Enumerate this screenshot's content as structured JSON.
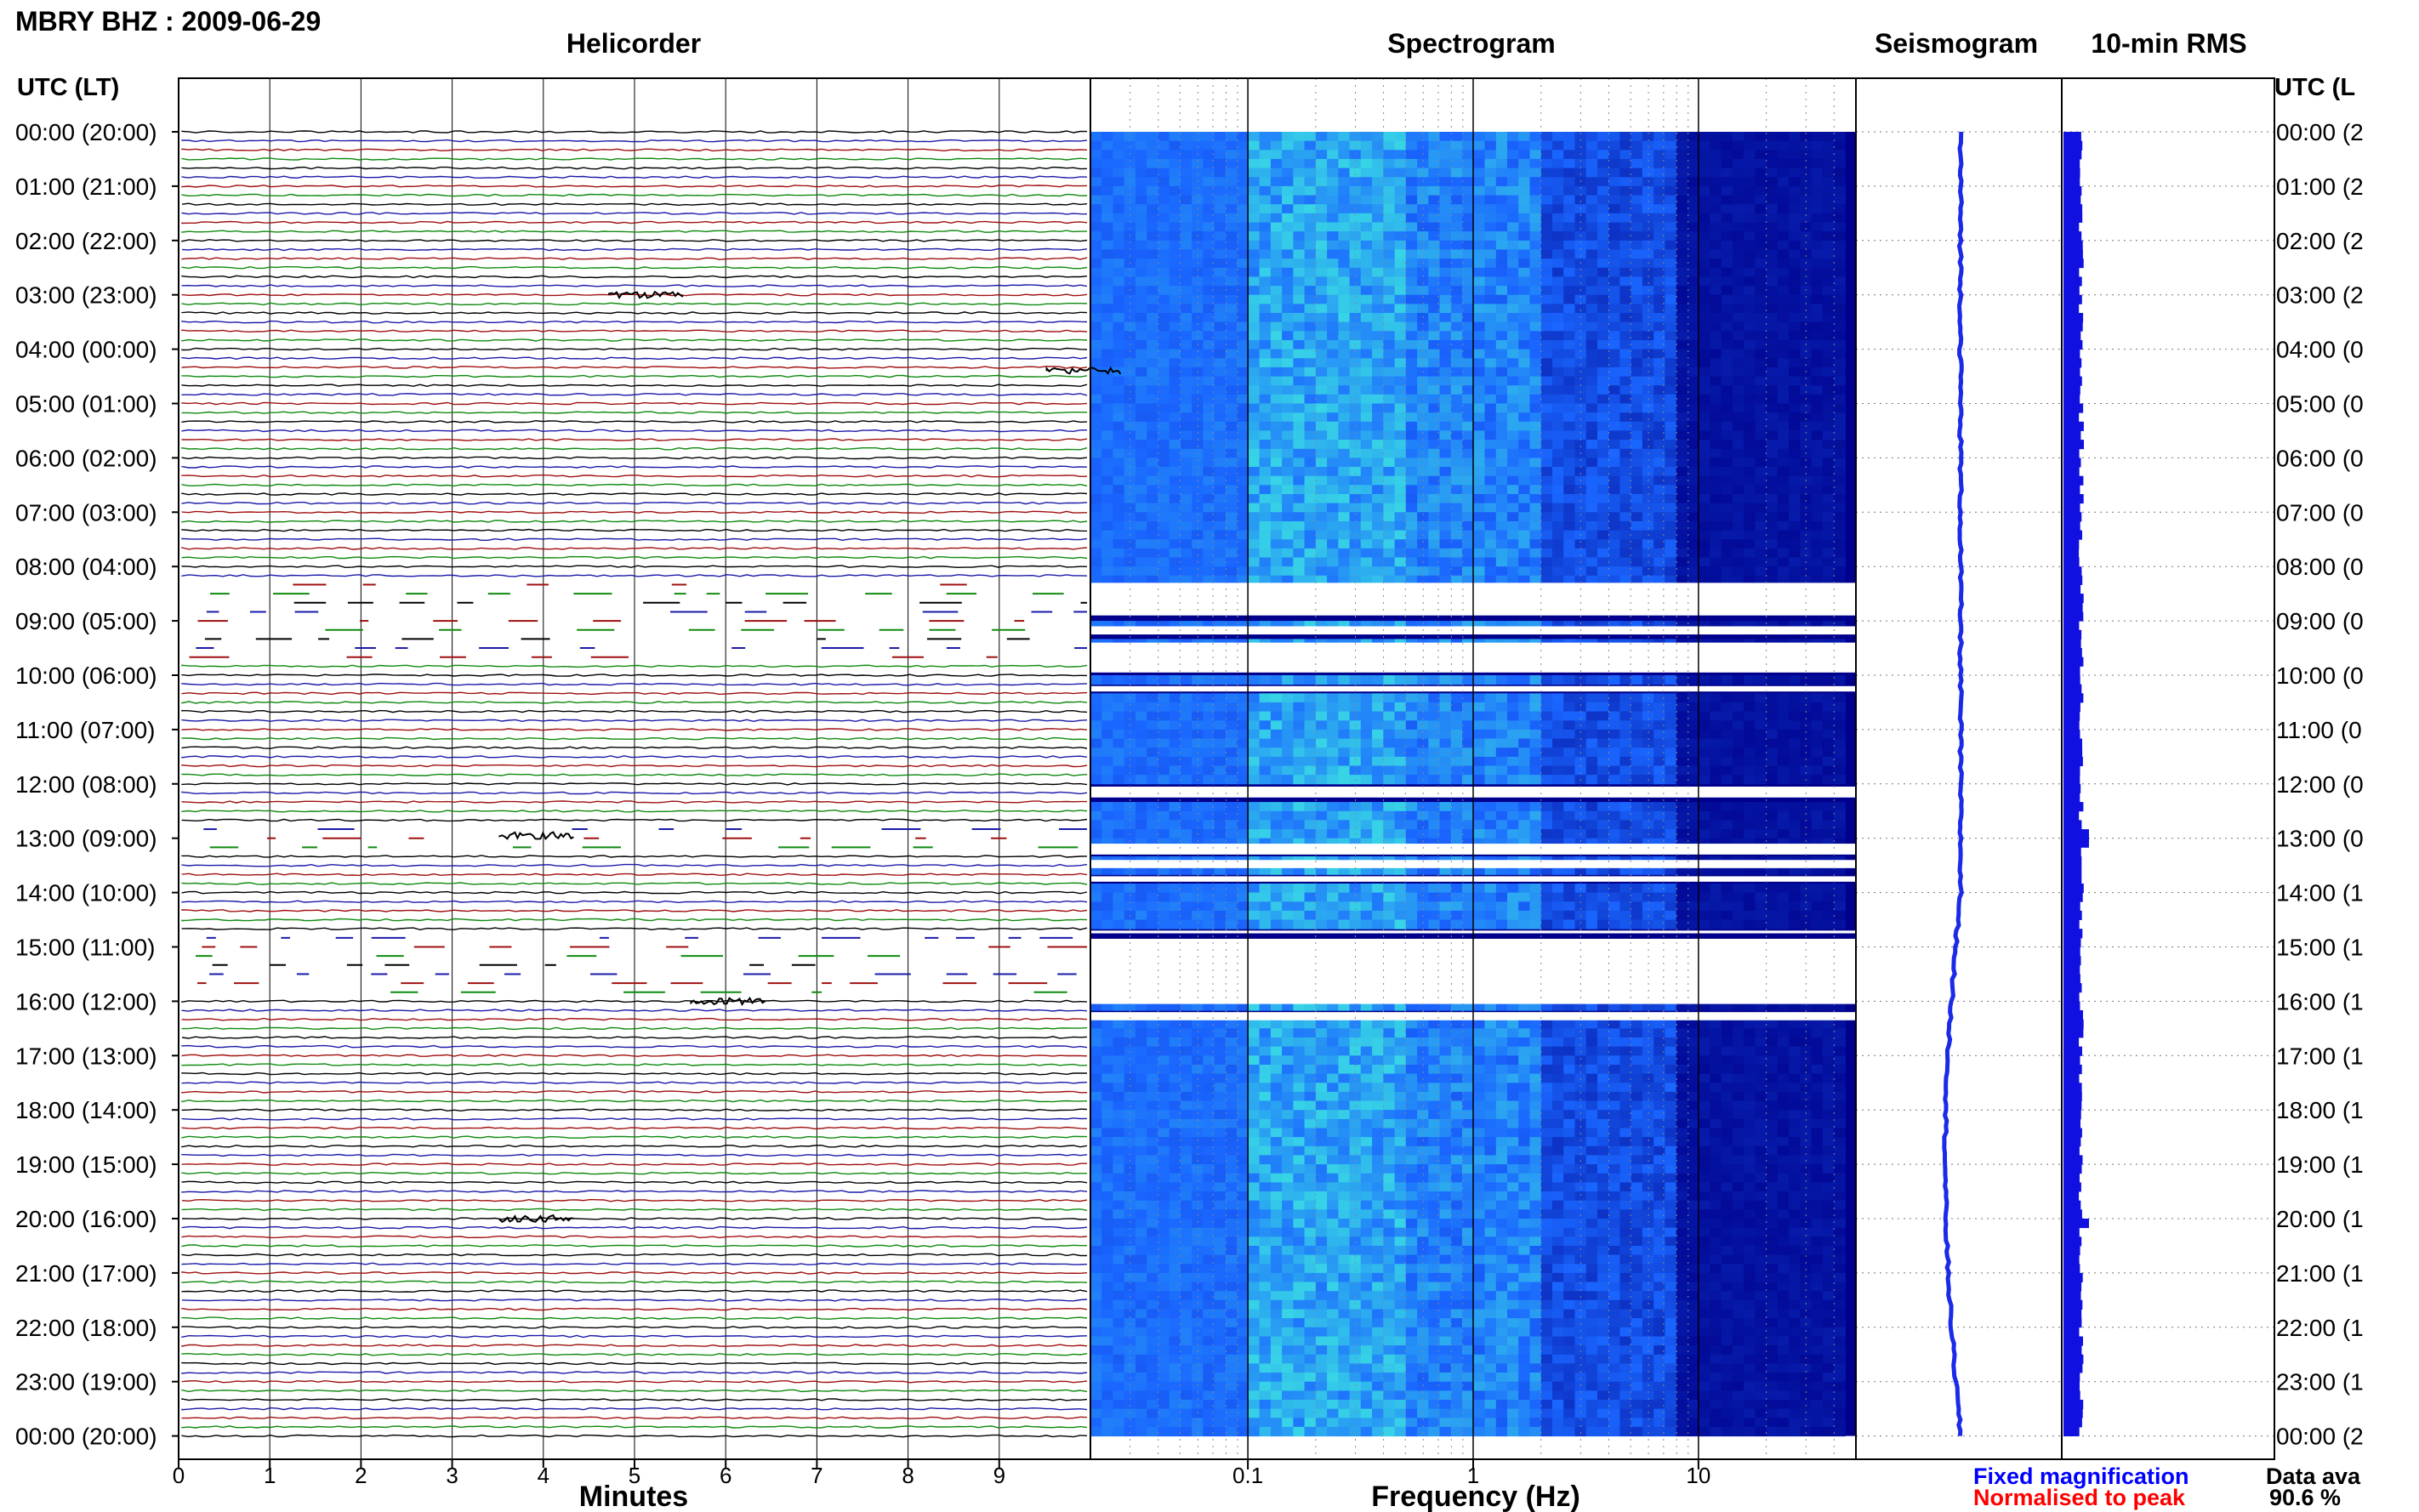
{
  "page": {
    "station_title": "MBRY BHZ : 2009-06-29",
    "utc_header": "UTC (LT)",
    "utc_header_right": "UTC (L",
    "panels": {
      "helicorder": "Helicorder",
      "spectrogram": "Spectrogram",
      "seismogram": "Seismogram",
      "rms": "10-min RMS"
    },
    "x_axes": {
      "minutes_label": "Minutes",
      "frequency_label": "Frequency (Hz)"
    },
    "legend": {
      "fixed": "Fixed magnification",
      "normalised": "Normalised to peak"
    },
    "availability": {
      "label": "Data ava",
      "value": "90.6 %"
    },
    "colors": {
      "trace_cycle": [
        "#000000",
        "#1a1aa8",
        "#a01010",
        "#0f8a0f"
      ],
      "legend_fixed": "#0000ff",
      "legend_normalised": "#ff0000",
      "spectrogram_low": "#00008c",
      "spectrogram_mid": "#1a66ff",
      "spectrogram_high": "#3ff0e0",
      "rms_bar": "#1010e0",
      "seismogram_line": "#1a2ae6"
    }
  },
  "chart_data": [
    {
      "type": "line",
      "panel": "helicorder",
      "title": "Helicorder",
      "xlabel": "Minutes",
      "ylabel": "UTC (LT)",
      "xlim": [
        0,
        10
      ],
      "x_ticks": [
        0,
        1,
        2,
        3,
        4,
        5,
        6,
        7,
        8,
        9
      ],
      "row_labels": [
        "00:00 (20:00)",
        "01:00 (21:00)",
        "02:00 (22:00)",
        "03:00 (23:00)",
        "04:00 (00:00)",
        "05:00 (01:00)",
        "06:00 (02:00)",
        "07:00 (03:00)",
        "08:00 (04:00)",
        "09:00 (05:00)",
        "10:00 (06:00)",
        "11:00 (07:00)",
        "12:00 (08:00)",
        "13:00 (09:00)",
        "14:00 (10:00)",
        "15:00 (11:00)",
        "16:00 (12:00)",
        "17:00 (13:00)",
        "18:00 (14:00)",
        "19:00 (15:00)",
        "20:00 (16:00)",
        "21:00 (17:00)",
        "22:00 (18:00)",
        "23:00 (19:00)",
        "00:00 (20:00)"
      ],
      "row_labels_right": [
        "00:00 (2",
        "01:00 (2",
        "02:00 (2",
        "03:00 (2",
        "04:00 (0",
        "05:00 (0",
        "06:00 (0",
        "07:00 (0",
        "08:00 (0",
        "09:00 (0",
        "10:00 (0",
        "11:00 (0",
        "12:00 (0",
        "13:00 (0",
        "14:00 (1",
        "15:00 (1",
        "16:00 (1",
        "17:00 (1",
        "18:00 (1",
        "19:00 (1",
        "20:00 (1",
        "21:00 (1",
        "22:00 (1",
        "23:00 (1",
        "00:00 (2"
      ],
      "traces_per_hour": 6,
      "gap_hours": [
        [
          8.3,
          9.7
        ],
        [
          12.8,
          13.3
        ],
        [
          14.8,
          16.0
        ]
      ],
      "events": [
        {
          "hour": 3.0,
          "minute": 5.0
        },
        {
          "hour": 4.4,
          "minute": 9.8
        },
        {
          "hour": 12.95,
          "minute": 3.8
        },
        {
          "hour": 16.0,
          "minute": 5.9
        },
        {
          "hour": 20.0,
          "minute": 3.8
        }
      ]
    },
    {
      "type": "heatmap",
      "panel": "spectrogram",
      "title": "Spectrogram",
      "xlabel": "Frequency (Hz)",
      "x_scale": "log",
      "xlim": [
        0.02,
        50
      ],
      "x_tick_labels": [
        "0.1",
        "1",
        "10"
      ],
      "x_tick_values": [
        0.1,
        1,
        10
      ],
      "gap_hours": [
        [
          8.3,
          8.9
        ],
        [
          9.1,
          9.25
        ],
        [
          9.4,
          9.95
        ],
        [
          10.2,
          10.3
        ],
        [
          12.05,
          12.25
        ],
        [
          13.1,
          13.3
        ],
        [
          13.4,
          13.55
        ],
        [
          13.7,
          13.8
        ],
        [
          14.7,
          14.75
        ],
        [
          14.85,
          16.05
        ],
        [
          16.2,
          16.35
        ]
      ]
    },
    {
      "type": "line",
      "panel": "seismogram",
      "title": "Seismogram"
    },
    {
      "type": "bar",
      "panel": "rms",
      "title": "10-min RMS",
      "peaks_hours": [
        12.95,
        20.0
      ]
    }
  ]
}
